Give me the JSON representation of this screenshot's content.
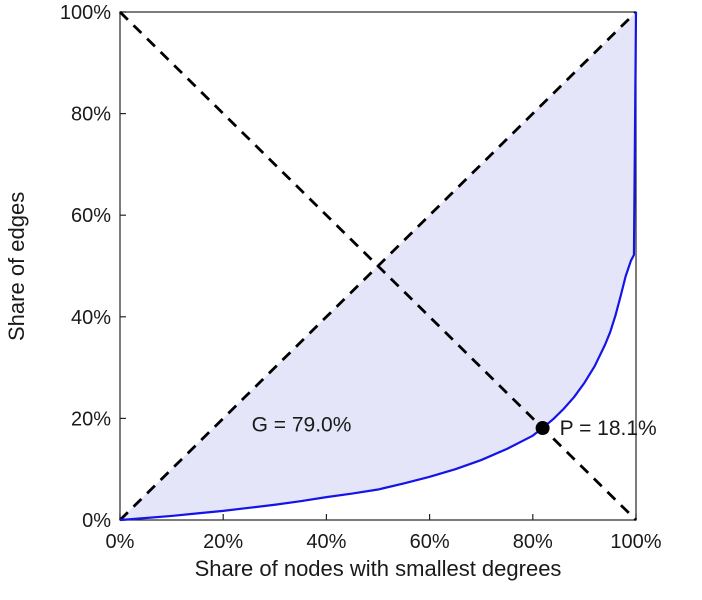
{
  "chart_data": {
    "type": "line",
    "title": "",
    "xlabel": "Share of nodes with smallest degrees",
    "ylabel": "Share of edges",
    "xlim": [
      0,
      100
    ],
    "ylim": [
      0,
      100
    ],
    "grid": false,
    "legend": "none",
    "axis_color": "#262626",
    "text_color": "#1a1a1a",
    "x_ticks": [
      0,
      20,
      40,
      60,
      80,
      100
    ],
    "x_tick_labels": [
      "0%",
      "20%",
      "40%",
      "60%",
      "80%",
      "100%"
    ],
    "y_ticks": [
      0,
      20,
      40,
      60,
      80,
      100
    ],
    "y_tick_labels": [
      "0%",
      "20%",
      "40%",
      "60%",
      "80%",
      "100%"
    ],
    "series": [
      {
        "name": "lorenz-curve",
        "color": "#1414e8",
        "width": 2.2,
        "dash": false,
        "points": [
          [
            0,
            0
          ],
          [
            5,
            0.4
          ],
          [
            10,
            0.8
          ],
          [
            15,
            1.3
          ],
          [
            20,
            1.8
          ],
          [
            25,
            2.4
          ],
          [
            30,
            3.0
          ],
          [
            35,
            3.7
          ],
          [
            40,
            4.5
          ],
          [
            45,
            5.2
          ],
          [
            50,
            6.0
          ],
          [
            55,
            7.2
          ],
          [
            60,
            8.5
          ],
          [
            65,
            10.0
          ],
          [
            70,
            11.8
          ],
          [
            75,
            14.0
          ],
          [
            80,
            16.6
          ],
          [
            82,
            18.2
          ],
          [
            84,
            19.9
          ],
          [
            86,
            21.9
          ],
          [
            88,
            24.2
          ],
          [
            90,
            27.0
          ],
          [
            92,
            30.3
          ],
          [
            94,
            34.5
          ],
          [
            95,
            37.0
          ],
          [
            96,
            40.2
          ],
          [
            97,
            44.0
          ],
          [
            98,
            48.0
          ],
          [
            99,
            51.0
          ],
          [
            99.6,
            52.2
          ],
          [
            100,
            100
          ]
        ]
      },
      {
        "name": "equality-diagonal",
        "color": "#000000",
        "width": 2.8,
        "dash": true,
        "points": [
          [
            0,
            0
          ],
          [
            100,
            100
          ]
        ]
      },
      {
        "name": "anti-diagonal",
        "color": "#000000",
        "width": 2.8,
        "dash": true,
        "points": [
          [
            0,
            100
          ],
          [
            100,
            0
          ]
        ]
      }
    ],
    "fill_between": {
      "color": "#e5e5f9",
      "upper": "equality-diagonal",
      "lower": "lorenz-curve"
    },
    "point": {
      "x": 81.9,
      "y": 18.1,
      "color": "#000000",
      "radius": 7
    },
    "annotations": [
      {
        "id": "gini",
        "text": "G = 79.0%",
        "x": 25.5,
        "y": 18.8
      },
      {
        "id": "pivot",
        "text": "P = 18.1%",
        "x": 85.2,
        "y": 18.1
      }
    ]
  }
}
